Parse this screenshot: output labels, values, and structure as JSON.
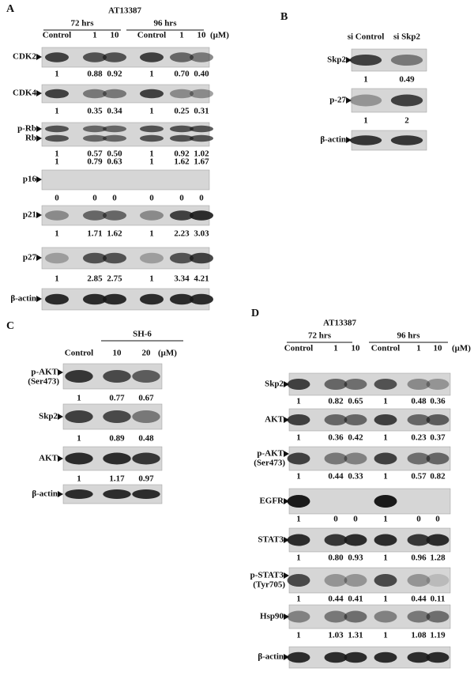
{
  "panels": [
    {
      "label": "A",
      "title": "AT13387",
      "groups": [
        "72 hrs",
        "96 hrs"
      ],
      "lanes": [
        "Control",
        "1",
        "10",
        "Control",
        "1",
        "10"
      ],
      "unit": "(μM)",
      "blots": [
        {
          "labels": [
            "CDK2"
          ],
          "values": [
            [
              "1",
              "0.88",
              "0.92",
              "1",
              "0.70",
              "0.40"
            ]
          ]
        },
        {
          "labels": [
            "CDK4"
          ],
          "values": [
            [
              "1",
              "0.35",
              "0.34",
              "1",
              "0.25",
              "0.31"
            ]
          ]
        },
        {
          "labels": [
            "p-Rb",
            "Rb"
          ],
          "values": [
            [
              "1",
              "0.57",
              "0.50",
              "1",
              "0.92",
              "1.02"
            ],
            [
              "1",
              "0.79",
              "0.63",
              "1",
              "1.62",
              "1.67"
            ]
          ]
        },
        {
          "labels": [
            "p16"
          ],
          "values": [
            [
              "0",
              "0",
              "0",
              "0",
              "0",
              "0"
            ]
          ]
        },
        {
          "labels": [
            "p21"
          ],
          "values": [
            [
              "1",
              "1.71",
              "1.62",
              "1",
              "2.23",
              "3.03"
            ]
          ]
        },
        {
          "labels": [
            "p27"
          ],
          "values": [
            [
              "1",
              "2.85",
              "2.75",
              "1",
              "3.34",
              "4.21"
            ]
          ]
        },
        {
          "labels": [
            "β-actin"
          ],
          "values": []
        }
      ]
    },
    {
      "label": "B",
      "lanes": [
        "si Control",
        "si Skp2"
      ],
      "blots": [
        {
          "labels": [
            "Skp2"
          ],
          "values": [
            [
              "1",
              "0.49"
            ]
          ]
        },
        {
          "labels": [
            "p-27"
          ],
          "values": [
            [
              "1",
              "2"
            ]
          ]
        },
        {
          "labels": [
            "β-actin"
          ],
          "values": []
        }
      ]
    },
    {
      "label": "C",
      "groups": [
        "SH-6"
      ],
      "lanes": [
        "Control",
        "10",
        "20"
      ],
      "unit": "(μM)",
      "blots": [
        {
          "labels": [
            "p-AKT",
            "(Ser473)"
          ],
          "values": [
            [
              "1",
              "0.77",
              "0.67"
            ]
          ]
        },
        {
          "labels": [
            "Skp2"
          ],
          "values": [
            [
              "1",
              "0.89",
              "0.48"
            ]
          ]
        },
        {
          "labels": [
            "AKT"
          ],
          "values": [
            [
              "1",
              "1.17",
              "0.97"
            ]
          ]
        },
        {
          "labels": [
            "β-actin"
          ],
          "values": []
        }
      ]
    },
    {
      "label": "D",
      "title": "AT13387",
      "groups": [
        "72 hrs",
        "96 hrs"
      ],
      "lanes": [
        "Control",
        "1",
        "10",
        "Control",
        "1",
        "10"
      ],
      "unit": "(μM)",
      "blots": [
        {
          "labels": [
            "Skp2"
          ],
          "values": [
            [
              "1",
              "0.82",
              "0.65",
              "1",
              "0.48",
              "0.36"
            ]
          ]
        },
        {
          "labels": [
            "AKT"
          ],
          "values": [
            [
              "1",
              "0.36",
              "0.42",
              "1",
              "0.23",
              "0.37"
            ]
          ]
        },
        {
          "labels": [
            "p-AKT",
            "(Ser473)"
          ],
          "values": [
            [
              "1",
              "0.44",
              "0.33",
              "1",
              "0.57",
              "0.82"
            ]
          ]
        },
        {
          "labels": [
            "EGFR"
          ],
          "values": [
            [
              "1",
              "0",
              "0",
              "1",
              "0",
              "0"
            ]
          ]
        },
        {
          "labels": [
            "STAT3"
          ],
          "values": [
            [
              "1",
              "0.80",
              "0.93",
              "1",
              "0.96",
              "1.28"
            ]
          ]
        },
        {
          "labels": [
            "p-STAT3",
            "(Tyr705)"
          ],
          "values": [
            [
              "1",
              "0.44",
              "0.41",
              "1",
              "0.44",
              "0.11"
            ]
          ]
        },
        {
          "labels": [
            "Hsp90"
          ],
          "values": [
            [
              "1",
              "1.03",
              "1.31",
              "1",
              "1.08",
              "1.19"
            ]
          ]
        },
        {
          "labels": [
            "β-actin"
          ],
          "values": []
        }
      ]
    }
  ]
}
